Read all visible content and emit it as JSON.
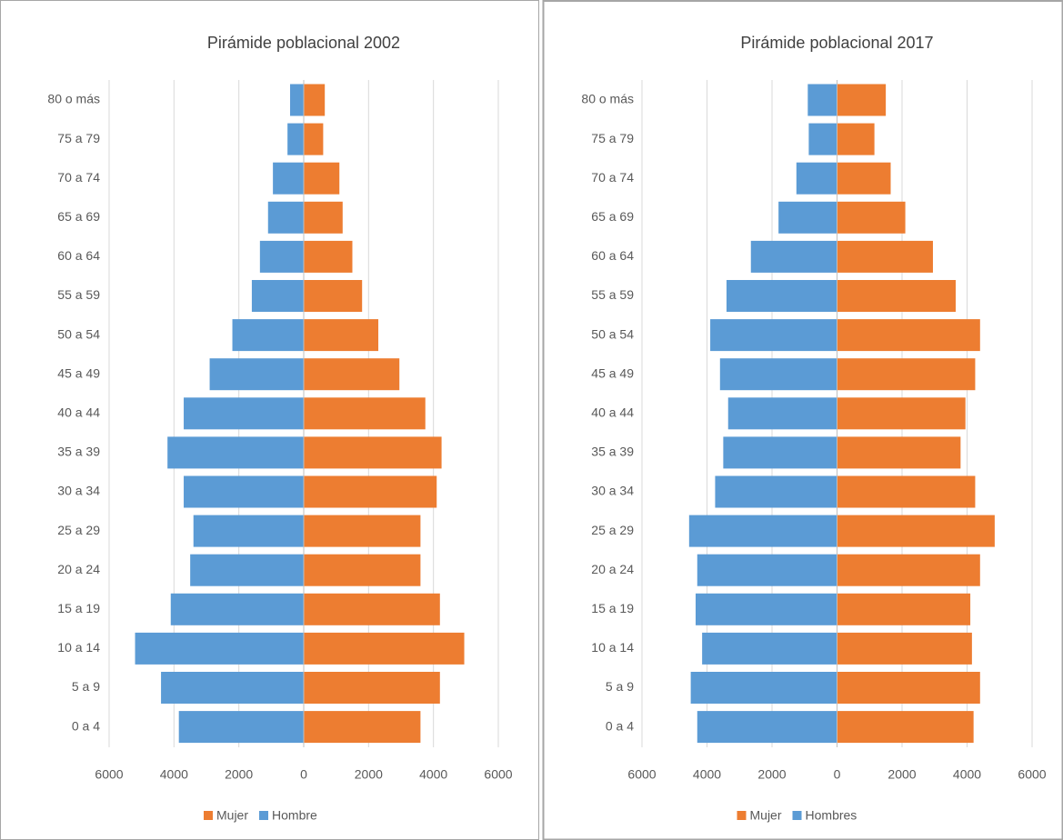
{
  "chart_data": [
    {
      "type": "pyramid",
      "title": "Pirámide poblacional 2002",
      "categories": [
        "80 o más",
        "75 a 79",
        "70 a 74",
        "65 a 69",
        "60 a 64",
        "55 a 59",
        "50 a 54",
        "45 a 49",
        "40 a 44",
        "35 a 39",
        "30 a 34",
        "25 a 29",
        "20 a 24",
        "15 a 19",
        "10 a 14",
        "5 a 9",
        "0 a 4"
      ],
      "series": [
        {
          "name": "Mujer",
          "color": "#ed7d31",
          "values": [
            650,
            600,
            1100,
            1200,
            1500,
            1800,
            2300,
            2950,
            3750,
            4250,
            4100,
            3600,
            3600,
            4200,
            4950,
            4200,
            3600
          ]
        },
        {
          "name": "Hombre",
          "color": "#5b9bd5",
          "values": [
            -420,
            -500,
            -950,
            -1100,
            -1350,
            -1600,
            -2200,
            -2900,
            -3700,
            -4200,
            -3700,
            -3400,
            -3500,
            -4100,
            -5200,
            -4400,
            -3850
          ]
        }
      ],
      "xlim": [
        -6000,
        6000
      ],
      "xticks": [
        {
          "value": -6000,
          "label": "6000"
        },
        {
          "value": -4000,
          "label": "4000"
        },
        {
          "value": -2000,
          "label": "2000"
        },
        0,
        2000,
        4000,
        6000
      ],
      "grid": true,
      "legend": "bottom"
    },
    {
      "type": "pyramid",
      "title": "Pirámide poblacional 2017",
      "categories": [
        "80 o más",
        "75 a 79",
        "70 a 74",
        "65 a 69",
        "60 a 64",
        "55 a 59",
        "50 a 54",
        "45 a 49",
        "40 a 44",
        "35 a 39",
        "30 a 34",
        "25 a 29",
        "20 a 24",
        "15 a 19",
        "10 a 14",
        "5 a 9",
        "0 a 4"
      ],
      "series": [
        {
          "name": "Mujer",
          "color": "#ed7d31",
          "values": [
            1500,
            1150,
            1650,
            2100,
            2950,
            3650,
            4400,
            4250,
            3950,
            3800,
            4250,
            4850,
            4400,
            4100,
            4150,
            4400,
            4200
          ]
        },
        {
          "name": "Hombres",
          "color": "#5b9bd5",
          "values": [
            -900,
            -870,
            -1250,
            -1800,
            -2650,
            -3400,
            -3900,
            -3600,
            -3350,
            -3500,
            -3750,
            -4550,
            -4300,
            -4350,
            -4150,
            -4500,
            -4300
          ]
        }
      ],
      "xlim": [
        -6000,
        6000
      ],
      "xticks": [
        {
          "value": -6000,
          "label": "6000"
        },
        {
          "value": -4000,
          "label": "4000"
        },
        {
          "value": -2000,
          "label": "2000"
        },
        0,
        2000,
        4000,
        6000
      ],
      "grid": true,
      "legend": "bottom"
    }
  ]
}
